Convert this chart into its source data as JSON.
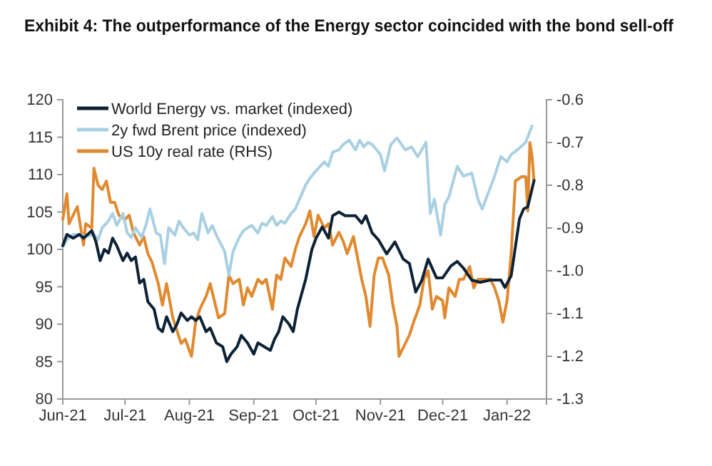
{
  "chart_data": {
    "type": "line",
    "title": "Exhibit 4: The outperformance of the Energy sector coincided with the bond sell-off",
    "xlim": [
      "2021-06-01",
      "2022-01-20"
    ],
    "xticks": [
      {
        "value": "2021-06-01",
        "label": "Jun-21"
      },
      {
        "value": "2021-07-01",
        "label": "Jul-21"
      },
      {
        "value": "2021-08-01",
        "label": "Aug-21"
      },
      {
        "value": "2021-09-01",
        "label": "Sep-21"
      },
      {
        "value": "2021-10-01",
        "label": "Oct-21"
      },
      {
        "value": "2021-11-01",
        "label": "Nov-21"
      },
      {
        "value": "2021-12-01",
        "label": "Dec-21"
      },
      {
        "value": "2022-01-01",
        "label": "Jan-22"
      }
    ],
    "ylim": [
      80,
      120
    ],
    "yticks": [
      80,
      85,
      90,
      95,
      100,
      105,
      110,
      115,
      120
    ],
    "y2lim": [
      -1.3,
      -0.6
    ],
    "y2ticks": [
      {
        "value": -1.3,
        "label": "-1.3"
      },
      {
        "value": -1.2,
        "label": "-1.2"
      },
      {
        "value": -1.1,
        "label": "-1.1"
      },
      {
        "value": -1.0,
        "label": "-1.0"
      },
      {
        "value": -0.9,
        "label": "-0.9"
      },
      {
        "value": -0.8,
        "label": "-0.8"
      },
      {
        "value": -0.7,
        "label": "-0.7"
      },
      {
        "value": -0.6,
        "label": "-0.6"
      }
    ],
    "grid": false,
    "legend": "top left",
    "marker": "none",
    "line_style": "solid",
    "series": [
      {
        "name": "World Energy vs. market (indexed)",
        "color": "#0d2235",
        "x": [
          "2021-06-01",
          "2021-06-03",
          "2021-06-06",
          "2021-06-09",
          "2021-06-11",
          "2021-06-15",
          "2021-06-17",
          "2021-06-19",
          "2021-06-21",
          "2021-06-23",
          "2021-06-25",
          "2021-06-27",
          "2021-06-30",
          "2021-07-02",
          "2021-07-04",
          "2021-07-06",
          "2021-07-08",
          "2021-07-10",
          "2021-07-12",
          "2021-07-15",
          "2021-07-17",
          "2021-07-19",
          "2021-07-21",
          "2021-07-24",
          "2021-07-26",
          "2021-07-28",
          "2021-07-31",
          "2021-08-02",
          "2021-08-04",
          "2021-08-06",
          "2021-08-09",
          "2021-08-11",
          "2021-08-14",
          "2021-08-17",
          "2021-08-19",
          "2021-08-21",
          "2021-08-24",
          "2021-08-26",
          "2021-08-29",
          "2021-09-01",
          "2021-09-03",
          "2021-09-06",
          "2021-09-09",
          "2021-09-11",
          "2021-09-13",
          "2021-09-15",
          "2021-09-18",
          "2021-09-20",
          "2021-09-22",
          "2021-09-26",
          "2021-09-29",
          "2021-10-01",
          "2021-10-04",
          "2021-10-07",
          "2021-10-09",
          "2021-10-12",
          "2021-10-15",
          "2021-10-20",
          "2021-10-23",
          "2021-10-25",
          "2021-10-28",
          "2021-10-31",
          "2021-11-04",
          "2021-11-08",
          "2021-11-12",
          "2021-11-15",
          "2021-11-18",
          "2021-11-21",
          "2021-11-24",
          "2021-11-28",
          "2021-12-01",
          "2021-12-05",
          "2021-12-08",
          "2021-12-11",
          "2021-12-15",
          "2021-12-19",
          "2021-12-24",
          "2021-12-29",
          "2021-12-31",
          "2022-01-03",
          "2022-01-07",
          "2022-01-09",
          "2022-01-11",
          "2022-01-14"
        ],
        "values": [
          100.5,
          102,
          101.5,
          102,
          101.5,
          102.5,
          101,
          98.5,
          100,
          99.5,
          101.5,
          100.5,
          98.5,
          99.5,
          98.5,
          99,
          95.5,
          96,
          93,
          92,
          89.5,
          89,
          91,
          89,
          90,
          91.5,
          90.5,
          91,
          90.5,
          91,
          89,
          89.5,
          87.5,
          87,
          85,
          86,
          87,
          88.5,
          87.5,
          86,
          87.5,
          87,
          86.5,
          88,
          89,
          91,
          90,
          89,
          92,
          96,
          100,
          101.5,
          103,
          101.5,
          104.5,
          105,
          104.5,
          104.5,
          103.5,
          104.5,
          102.2,
          101.3,
          99.4,
          101,
          98.7,
          98.1,
          94.3,
          95.9,
          98.7,
          96.2,
          96.2,
          97.8,
          98.4,
          97.5,
          95.9,
          95.6,
          95.9,
          95.9,
          94.9,
          96.5,
          104.1,
          105.4,
          105.7,
          109.2
        ]
      },
      {
        "name": "2y fwd Brent price (indexed)",
        "color": "#a9d0e2",
        "x": [
          "2021-06-01",
          "2021-06-03",
          "2021-06-06",
          "2021-06-09",
          "2021-06-12",
          "2021-06-16",
          "2021-06-18",
          "2021-06-20",
          "2021-06-23",
          "2021-06-25",
          "2021-06-27",
          "2021-06-30",
          "2021-07-02",
          "2021-07-04",
          "2021-07-06",
          "2021-07-09",
          "2021-07-11",
          "2021-07-13",
          "2021-07-16",
          "2021-07-18",
          "2021-07-20",
          "2021-07-22",
          "2021-07-25",
          "2021-07-27",
          "2021-07-29",
          "2021-08-01",
          "2021-08-03",
          "2021-08-05",
          "2021-08-07",
          "2021-08-10",
          "2021-08-12",
          "2021-08-14",
          "2021-08-18",
          "2021-08-20",
          "2021-08-22",
          "2021-08-25",
          "2021-08-27",
          "2021-08-29",
          "2021-08-31",
          "2021-09-03",
          "2021-09-05",
          "2021-09-07",
          "2021-09-10",
          "2021-09-12",
          "2021-09-14",
          "2021-09-16",
          "2021-09-19",
          "2021-09-21",
          "2021-09-23",
          "2021-09-26",
          "2021-09-28",
          "2021-09-30",
          "2021-10-02",
          "2021-10-05",
          "2021-10-07",
          "2021-10-09",
          "2021-10-12",
          "2021-10-14",
          "2021-10-17",
          "2021-10-20",
          "2021-10-22",
          "2021-10-24",
          "2021-10-26",
          "2021-10-28",
          "2021-11-01",
          "2021-11-03",
          "2021-11-06",
          "2021-11-09",
          "2021-11-13",
          "2021-11-16",
          "2021-11-19",
          "2021-11-23",
          "2021-11-25",
          "2021-11-27",
          "2021-11-30",
          "2021-12-02",
          "2021-12-04",
          "2021-12-08",
          "2021-12-11",
          "2021-12-15",
          "2021-12-18",
          "2021-12-20",
          "2021-12-24",
          "2021-12-26",
          "2021-12-29",
          "2022-01-01",
          "2022-01-03",
          "2022-01-06",
          "2022-01-10",
          "2022-01-13"
        ],
        "values": [
          100.3,
          101.3,
          102,
          102,
          101.7,
          102,
          101.3,
          102.9,
          103.8,
          104.8,
          103.2,
          104.8,
          102.2,
          101.6,
          102.9,
          101.6,
          103.2,
          105.4,
          102.2,
          101.9,
          98.1,
          102.9,
          101.9,
          103.8,
          102.9,
          101.9,
          102.2,
          101.3,
          104.8,
          102.2,
          103.2,
          101.9,
          99.7,
          96.5,
          99.7,
          101.6,
          102.5,
          102.9,
          103.2,
          102.2,
          103.5,
          103.2,
          104.4,
          103.2,
          103.8,
          103.5,
          104.8,
          105.4,
          106.7,
          108.6,
          109.5,
          110.2,
          110.8,
          111.7,
          111.1,
          113,
          113.3,
          114,
          114.6,
          113.3,
          114.6,
          113.7,
          114.3,
          114,
          112.7,
          110.5,
          114,
          114.9,
          113.3,
          113.7,
          112.4,
          114.3,
          104.8,
          106.7,
          101.9,
          106,
          107,
          111.1,
          109.8,
          110.2,
          106.7,
          105.4,
          108.3,
          109.8,
          112.4,
          111.7,
          112.7,
          113.3,
          114.3,
          116.5
        ]
      },
      {
        "name": "US 10y real rate (RHS)",
        "color": "#e0892e",
        "axis": "y2",
        "x": [
          "2021-06-01",
          "2021-06-03",
          "2021-06-04",
          "2021-06-06",
          "2021-06-08",
          "2021-06-09",
          "2021-06-11",
          "2021-06-12",
          "2021-06-15",
          "2021-06-16",
          "2021-06-18",
          "2021-06-20",
          "2021-06-22",
          "2021-06-24",
          "2021-06-26",
          "2021-06-28",
          "2021-07-01",
          "2021-07-03",
          "2021-07-05",
          "2021-07-08",
          "2021-07-10",
          "2021-07-12",
          "2021-07-14",
          "2021-07-17",
          "2021-07-19",
          "2021-07-21",
          "2021-07-24",
          "2021-07-26",
          "2021-07-28",
          "2021-07-30",
          "2021-08-02",
          "2021-08-04",
          "2021-08-06",
          "2021-08-09",
          "2021-08-11",
          "2021-08-13",
          "2021-08-15",
          "2021-08-18",
          "2021-08-20",
          "2021-08-22",
          "2021-08-25",
          "2021-08-27",
          "2021-08-29",
          "2021-08-31",
          "2021-09-03",
          "2021-09-05",
          "2021-09-07",
          "2021-09-10",
          "2021-09-12",
          "2021-09-14",
          "2021-09-16",
          "2021-09-19",
          "2021-09-21",
          "2021-09-23",
          "2021-09-26",
          "2021-09-28",
          "2021-09-30",
          "2021-10-02",
          "2021-10-05",
          "2021-10-07",
          "2021-10-09",
          "2021-10-12",
          "2021-10-14",
          "2021-10-16",
          "2021-10-19",
          "2021-10-21",
          "2021-10-23",
          "2021-10-25",
          "2021-10-27",
          "2021-10-29",
          "2021-10-31",
          "2021-11-02",
          "2021-11-05",
          "2021-11-07",
          "2021-11-09",
          "2021-11-10",
          "2021-11-13",
          "2021-11-15",
          "2021-11-17",
          "2021-11-20",
          "2021-11-22",
          "2021-11-24",
          "2021-11-26",
          "2021-11-28",
          "2021-12-01",
          "2021-12-02",
          "2021-12-04",
          "2021-12-07",
          "2021-12-09",
          "2021-12-11",
          "2021-12-14",
          "2021-12-16",
          "2021-12-18",
          "2021-12-20",
          "2021-12-24",
          "2021-12-26",
          "2021-12-28",
          "2021-12-30",
          "2022-01-01",
          "2022-01-03",
          "2022-01-05",
          "2022-01-08",
          "2022-01-10",
          "2022-01-11",
          "2022-01-12",
          "2022-01-13",
          "2022-01-14"
        ],
        "values": [
          -0.88,
          -0.82,
          -0.89,
          -0.87,
          -0.85,
          -0.88,
          -0.94,
          -0.89,
          -0.9,
          -0.76,
          -0.8,
          -0.81,
          -0.79,
          -0.84,
          -0.84,
          -0.87,
          -0.88,
          -0.87,
          -0.91,
          -0.94,
          -0.92,
          -0.96,
          -0.98,
          -1.03,
          -1.08,
          -1.03,
          -1.11,
          -1.14,
          -1.17,
          -1.16,
          -1.2,
          -1.12,
          -1.09,
          -1.06,
          -1.03,
          -1.07,
          -1.11,
          -1.1,
          -1.01,
          -1.03,
          -1.02,
          -1.08,
          -1.04,
          -1.06,
          -1.02,
          -1.03,
          -1.02,
          -1.09,
          -1.01,
          -1.02,
          -0.97,
          -0.99,
          -0.95,
          -0.92,
          -0.89,
          -0.86,
          -0.92,
          -0.87,
          -0.9,
          -0.89,
          -0.94,
          -0.91,
          -0.93,
          -0.96,
          -0.92,
          -0.97,
          -1.02,
          -1.06,
          -1.13,
          -1.01,
          -0.97,
          -0.97,
          -1.01,
          -1.08,
          -1.13,
          -1.2,
          -1.17,
          -1.15,
          -1.12,
          -1.08,
          -1.02,
          -1.0,
          -1.09,
          -1.06,
          -1.07,
          -1.11,
          -1.04,
          -1.06,
          -1.02,
          -1.02,
          -0.99,
          -1.04,
          -1.02,
          -1.02,
          -1.02,
          -1.04,
          -1.07,
          -1.12,
          -1.07,
          -0.96,
          -0.79,
          -0.78,
          -0.78,
          -0.86,
          -0.7,
          -0.73,
          -0.79
        ]
      }
    ]
  }
}
